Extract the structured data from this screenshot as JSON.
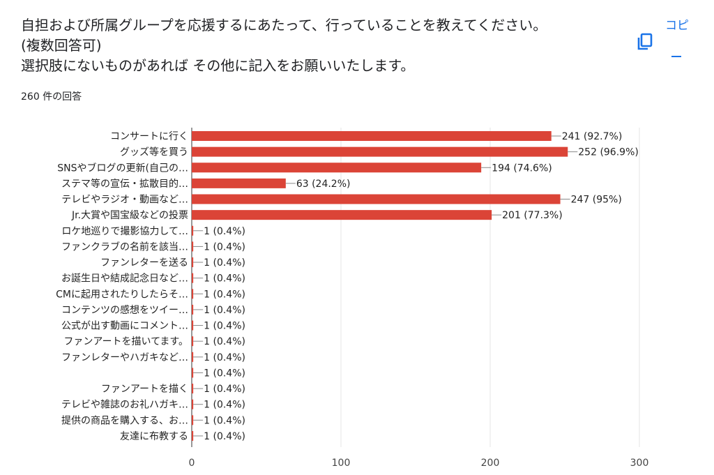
{
  "question": {
    "line1": "自担および所属グループを応援するにあたって、行っていることを教えてください。",
    "line2": "(複数回答可)",
    "line3": "選択肢にないものがあれば その他に記入をお願いいたします。"
  },
  "response_count": "260 件の回答",
  "copy": {
    "label": "コピ",
    "icon": "copy-icon"
  },
  "colors": {
    "bar": "#db4437",
    "copy": "#1a73e8"
  },
  "chart_data": {
    "type": "bar",
    "orientation": "horizontal",
    "categories": [
      "コンサートに行く",
      "グッズ等を買う",
      "SNSやブログの更新(自己の…",
      "ステマ等の宣伝・拡散目的…",
      "テレビやラジオ・動画など…",
      "Jr.大賞や国宝級などの投票",
      "ロケ地巡りで撮影協力して…",
      "ファンクラブの名前を該当…",
      "ファンレターを送る",
      "お誕生日や結成記念日など…",
      "CMに起用されたりしたらそ…",
      "コンテンツの感想をツイー…",
      "公式が出す動画にコメント…",
      "ファンアートを描いてます。",
      "ファンレターやハガキなど…",
      "",
      "ファンアートを描く",
      "テレビや雑誌のお礼ハガキ…",
      "提供の商品を購入する、お…",
      "友達に布教する"
    ],
    "values": [
      241,
      252,
      194,
      63,
      247,
      201,
      1,
      1,
      1,
      1,
      1,
      1,
      1,
      1,
      1,
      1,
      1,
      1,
      1,
      1
    ],
    "value_labels": [
      "241 (92.7%)",
      "252 (96.9%)",
      "194 (74.6%)",
      "63 (24.2%)",
      "247 (95%)",
      "201 (77.3%)",
      "1 (0.4%)",
      "1 (0.4%)",
      "1 (0.4%)",
      "1 (0.4%)",
      "1 (0.4%)",
      "1 (0.4%)",
      "1 (0.4%)",
      "1 (0.4%)",
      "1 (0.4%)",
      "1 (0.4%)",
      "1 (0.4%)",
      "1 (0.4%)",
      "1 (0.4%)",
      "1 (0.4%)"
    ],
    "x_ticks": [
      "0",
      "100",
      "200",
      "300"
    ],
    "xlim": [
      0,
      300
    ],
    "grid": true
  }
}
